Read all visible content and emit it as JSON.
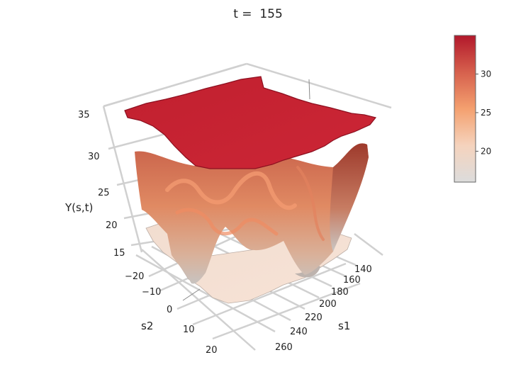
{
  "chart_data": {
    "type": "surface",
    "title": "t =  155",
    "axes": {
      "x": {
        "label": "s1",
        "ticks": [
          "140",
          "160",
          "180",
          "200",
          "220",
          "240",
          "260"
        ]
      },
      "y": {
        "label": "s2",
        "ticks": [
          "−20",
          "−10",
          "0",
          "10",
          "20"
        ]
      },
      "z": {
        "label": "Y(s,t)",
        "ticks": [
          "15",
          "20",
          "25",
          "30",
          "35"
        ],
        "range": [
          12,
          37
        ]
      }
    },
    "surfaces": [
      {
        "name_hidden": "",
        "level": "upper",
        "approx_value": 35
      },
      {
        "name_hidden": "",
        "level": "middle",
        "approx_value_range": [
          15,
          33
        ]
      },
      {
        "name_hidden": "",
        "level": "lower",
        "approx_value": 16
      }
    ],
    "colorbar": {
      "ticks": [
        "20",
        "25",
        "30"
      ],
      "range": [
        16,
        35
      ],
      "colors": [
        "#dcdcdc",
        "#f5d3bd",
        "#f4a06f",
        "#d6604d",
        "#b2182b"
      ]
    },
    "grid": true
  }
}
